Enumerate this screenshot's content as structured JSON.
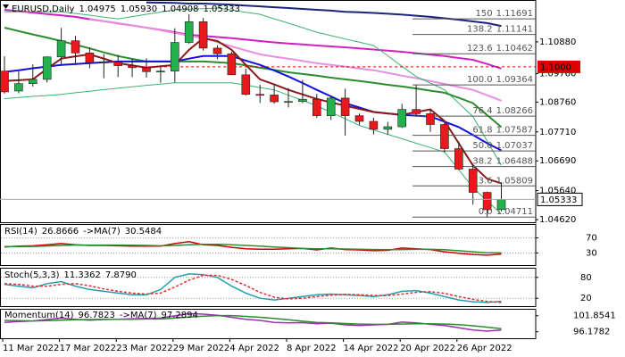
{
  "chart_data": [
    {
      "type": "candlestick",
      "title": "EURUSD,Daily",
      "header_values": [
        1.04975,
        {
          "value": 1.0593,
          "label": "1.05930"
        },
        1.04908,
        1.05333
      ],
      "categories": [
        "11 Mar 2022",
        null,
        null,
        null,
        "17 Mar 2022",
        null,
        null,
        null,
        "23 Mar 2022",
        null,
        null,
        null,
        "29 Mar 2022",
        null,
        null,
        null,
        "4 Apr 2022",
        null,
        null,
        null,
        "8 Apr 2022",
        null,
        null,
        null,
        "14 Apr 2022",
        null,
        null,
        null,
        "20 Apr 2022",
        null,
        null,
        null,
        "26 Apr 2022",
        null,
        null,
        null
      ],
      "open": [
        1.0985,
        1.0915,
        1.0941,
        1.0956,
        1.1035,
        1.1092,
        1.1049,
        1.1015,
        1.1017,
        1.1004,
        1.0997,
        1.0983,
        1.0985,
        1.1086,
        1.1159,
        1.1066,
        1.1046,
        1.0972,
        1.0903,
        1.0901,
        1.0877,
        1.0878,
        1.0886,
        1.0828,
        1.089,
        1.0828,
        1.0808,
        1.078,
        1.0789,
        1.085,
        1.0835,
        1.0797,
        1.0712,
        1.064,
        1.0558,
        1.04975
      ],
      "high": [
        1.1037,
        1.0984,
        1.1009,
        1.1037,
        1.1137,
        1.1109,
        1.1069,
        1.1045,
        1.1042,
        1.1028,
        1.103,
        1.0999,
        1.1136,
        1.1185,
        1.1172,
        1.1076,
        1.1053,
        1.0994,
        1.0937,
        1.0936,
        1.0925,
        1.0954,
        1.0905,
        1.0898,
        1.0923,
        1.0835,
        1.0821,
        1.0806,
        1.087,
        1.0936,
        1.0851,
        1.0805,
        1.0737,
        1.0657,
        1.0561,
        1.0593
      ],
      "low": [
        1.0906,
        1.0907,
        1.0931,
        1.0945,
        1.1005,
        1.1006,
        1.0995,
        1.096,
        1.0964,
        1.0964,
        1.0962,
        1.0944,
        1.0945,
        1.1081,
        1.1057,
        1.1027,
        1.0971,
        1.0899,
        1.0873,
        1.087,
        1.0857,
        1.0872,
        1.082,
        1.0813,
        1.0758,
        1.0796,
        1.0762,
        1.0761,
        1.0785,
        1.0826,
        1.0771,
        1.0699,
        1.0637,
        1.0515,
        1.0471,
        1.04908
      ],
      "close": [
        1.0912,
        1.0941,
        1.0956,
        1.1035,
        1.1092,
        1.1049,
        1.1015,
        1.1017,
        1.1004,
        1.0997,
        1.0983,
        1.0985,
        1.1086,
        1.1159,
        1.1066,
        1.1046,
        1.0972,
        1.0903,
        1.0901,
        1.0877,
        1.0878,
        1.0886,
        1.0828,
        1.089,
        1.0828,
        1.0808,
        1.078,
        1.0789,
        1.085,
        1.0835,
        1.0797,
        1.0712,
        1.064,
        1.0558,
        1.0497,
        1.05333
      ],
      "up_color": "#22b14c",
      "down_color": "#e8191c",
      "series": [
        {
          "color": "#1a237e",
          "width": 2,
          "values": [
            null,
            null,
            null,
            null,
            null,
            null,
            null,
            null,
            null,
            null,
            1.1227,
            1.1226,
            1.1225,
            1.1223,
            1.1223,
            1.1221,
            1.1219,
            1.1216,
            1.1213,
            1.121,
            1.1207,
            1.1204,
            1.1201,
            1.1198,
            1.1194,
            1.1192,
            1.119,
            1.1187,
            1.1184,
            1.118,
            1.1176,
            1.1171,
            1.1166,
            1.116,
            1.1154,
            1.1144
          ]
        },
        {
          "color": "#d020c0",
          "width": 2,
          "values": [
            1.1201,
            1.1196,
            1.1191,
            1.1186,
            1.1181,
            1.1176,
            1.1168,
            1.1161,
            1.1153,
            1.1146,
            1.1138,
            1.113,
            1.1122,
            1.1113,
            1.1109,
            1.1105,
            1.1101,
            1.1096,
            1.1091,
            1.1086,
            1.1082,
            1.1079,
            1.1075,
            1.1072,
            1.1069,
            1.1065,
            1.1061,
            1.1057,
            1.1053,
            1.1048,
            1.1043,
            1.1038,
            1.1031,
            1.1025,
            1.101,
            1.0994
          ]
        },
        {
          "color": "#e890e0",
          "width": 2,
          "values": [
            null,
            null,
            null,
            null,
            null,
            null,
            1.1169,
            1.1161,
            1.1154,
            1.1146,
            1.1138,
            1.1129,
            1.1119,
            1.111,
            1.1101,
            1.1087,
            1.1072,
            1.1058,
            1.1044,
            1.1036,
            1.1029,
            1.1021,
            1.1013,
            1.1007,
            1.1001,
            1.0994,
            1.0988,
            1.0979,
            1.0969,
            1.096,
            1.095,
            1.094,
            1.0929,
            1.0919,
            1.09,
            1.0881
          ]
        },
        {
          "color": "#3cb371",
          "width": 1,
          "values": [
            1.1194,
            1.1194,
            1.1194,
            1.1194,
            1.1194,
            1.1188,
            1.1182,
            1.1175,
            1.1169,
            1.1177,
            1.1185,
            1.1193,
            1.1201,
            1.1203,
            1.1205,
            1.1207,
            1.12,
            1.1192,
            1.1185,
            1.1169,
            1.1154,
            1.1138,
            1.1122,
            1.111,
            1.1098,
            1.1087,
            1.1075,
            1.1039,
            1.1002,
            1.0966,
            1.0943,
            1.0919,
            1.0872,
            1.0825,
            1.0739,
            1.0653
          ]
        },
        {
          "color": "#3cb371",
          "width": 1,
          "values": [
            1.0888,
            1.0892,
            1.0896,
            1.0899,
            1.0903,
            1.0909,
            1.0914,
            1.092,
            1.0925,
            1.093,
            1.0935,
            1.0939,
            1.0944,
            1.0944,
            1.0944,
            1.0944,
            1.0944,
            1.0936,
            1.0927,
            1.0919,
            1.09,
            1.0882,
            1.0863,
            1.084,
            1.0817,
            1.0794,
            1.0778,
            1.0762,
            1.0747,
            1.0731,
            1.0716,
            1.07,
            1.0638,
            1.0575,
            1.0528,
            1.0481
          ]
        },
        {
          "color": "#2e8b2e",
          "width": 2,
          "values": [
            1.1138,
            1.1126,
            1.1114,
            1.1103,
            1.1091,
            1.1078,
            1.1065,
            1.1051,
            1.1038,
            1.1028,
            1.1019,
            1.1019,
            1.1019,
            1.1019,
            1.1019,
            1.1016,
            1.1013,
            1.1005,
            1.0997,
            1.0989,
            1.0981,
            1.0975,
            1.0969,
            1.0962,
            1.0956,
            1.095,
            1.0944,
            1.0937,
            1.0931,
            1.0924,
            1.0916,
            1.0909,
            1.0891,
            1.0872,
            1.083,
            1.0788
          ]
        },
        {
          "color": "#1010e0",
          "width": 2,
          "values": [
            1.0982,
            1.0988,
            1.0995,
            1.1001,
            1.1007,
            1.101,
            1.1013,
            1.1016,
            1.1019,
            1.1019,
            1.1019,
            1.1019,
            1.1019,
            1.1029,
            1.1038,
            1.1038,
            1.1038,
            1.1022,
            1.1007,
            1.0987,
            1.0966,
            1.0943,
            1.0919,
            1.0896,
            1.0872,
            1.0857,
            1.0841,
            1.0836,
            1.0831,
            1.0828,
            1.0825,
            1.0807,
            1.0788,
            1.076,
            1.0731,
            1.0706
          ]
        },
        {
          "color": "#8b1a1a",
          "width": 2,
          "values": [
            1.095,
            1.0953,
            1.0956,
            1.0993,
            1.1029,
            1.1037,
            1.1044,
            1.1029,
            1.1013,
            1.1005,
            1.0997,
            1.1002,
            1.1007,
            1.106,
            1.1101,
            1.1091,
            1.106,
            1.1007,
            1.0956,
            1.0938,
            1.0919,
            1.0903,
            1.0887,
            1.0875,
            1.0863,
            1.0852,
            1.0841,
            1.0836,
            1.0831,
            1.0841,
            1.085,
            1.0809,
            1.0731,
            1.0653,
            1.0606,
            1.059
          ]
        }
      ],
      "ylim": [
        1.0456,
        1.1226
      ],
      "yticks": [
        {
          "value": 1.1088,
          "label": "1.10880"
        },
        {
          "value": 1.0976,
          "label": "1.09760"
        },
        {
          "value": 1.0876,
          "label": "1.08760"
        },
        {
          "value": 1.0771,
          "label": "1.07710"
        },
        {
          "value": 1.0669,
          "label": "1.06690"
        },
        {
          "value": 1.0564,
          "label": "1.05640"
        },
        {
          "value": 1.0462,
          "label": "1.04620"
        }
      ],
      "fibonacci": {
        "color": "#555555",
        "levels": [
          {
            "level": "150",
            "value": 1.11691
          },
          {
            "level": "138.2",
            "value": 1.11141
          },
          {
            "level": "123.6",
            "value": 1.10462
          },
          {
            "level": "100.0",
            "value": 1.09364
          },
          {
            "level": "76.4",
            "value": 1.08266
          },
          {
            "level": "61.8",
            "value": 1.07587
          },
          {
            "level": "50.0",
            "value": 1.07037
          },
          {
            "level": "38.2",
            "value": 1.06488
          },
          {
            "level": "23.6",
            "value": 1.05809
          },
          {
            "level": "0.0",
            "value": 1.04711
          }
        ]
      },
      "horizontal_line": {
        "value": 1.1,
        "label": "1.1000",
        "color": "#e00000"
      }
    },
    {
      "type": "line",
      "ylim": [
        0,
        100
      ],
      "yticks": [
        70,
        30
      ],
      "level_lines": true,
      "series": [
        {
          "name": "RSI(14)",
          "current": 26.8666,
          "color": "#cc0000",
          "values": [
            46,
            48,
            49,
            52,
            55,
            52,
            50,
            50,
            49,
            48,
            48,
            48,
            55,
            60,
            52,
            50,
            45,
            41,
            40,
            40,
            41,
            42,
            38,
            43,
            39,
            38,
            36,
            37,
            43,
            41,
            39,
            33,
            29,
            26,
            24,
            26.8666
          ]
        },
        {
          "name": "->MA(7)",
          "current": 30.5484,
          "color": "#2e8b2e",
          "values": [
            47,
            47,
            47.5,
            48.5,
            50,
            51,
            51,
            51,
            51,
            50.5,
            50,
            49,
            50,
            52,
            53,
            53,
            52,
            50,
            48,
            46,
            44,
            42,
            41,
            41,
            40.5,
            40,
            39,
            38.5,
            39,
            39.5,
            39.5,
            38.5,
            36,
            33,
            30.5,
            30.5484
          ]
        }
      ]
    },
    {
      "type": "line",
      "ylim": [
        0,
        100
      ],
      "yticks": [
        80,
        20
      ],
      "level_lines": true,
      "series": [
        {
          "name": "Stoch(5,3,3)",
          "current": 11.3362,
          "color": "#20a0b0",
          "values": [
            60,
            55,
            50,
            62,
            68,
            55,
            45,
            40,
            35,
            30,
            30,
            45,
            80,
            90,
            88,
            80,
            55,
            35,
            20,
            15,
            20,
            25,
            30,
            32,
            30,
            28,
            25,
            30,
            40,
            42,
            35,
            25,
            15,
            10,
            8,
            11.3362
          ]
        },
        {
          "current": {
            "value": 7.879,
            "label": "7.8790"
          },
          "color": "#e03030",
          "dashed": true,
          "values": [
            62,
            60,
            55,
            55,
            60,
            62,
            56,
            47,
            40,
            35,
            32,
            35,
            52,
            72,
            86,
            86,
            74,
            57,
            37,
            23,
            18,
            20,
            25,
            29,
            31,
            30,
            28,
            28,
            32,
            37,
            39,
            34,
            25,
            17,
            11,
            7.879
          ]
        }
      ]
    },
    {
      "type": "line",
      "ylim": [
        94.19,
        103.35
      ],
      "yticks": [
        101.8541,
        96.1782
      ],
      "level_lines": false,
      "series": [
        {
          "name": "Momentum(14)",
          "current": 96.7823,
          "color": "#9b30b0",
          "values": [
            99.5,
            99.8,
            100.0,
            100.5,
            101.0,
            100.6,
            100.3,
            100.5,
            100.6,
            100.8,
            100.9,
            101.0,
            101.8,
            102.6,
            102.4,
            102.0,
            101.3,
            100.6,
            100.2,
            99.5,
            99.3,
            99.4,
            99.0,
            99.2,
            98.6,
            98.4,
            98.6,
            98.8,
            99.6,
            99.3,
            98.8,
            98.4,
            97.6,
            96.8,
            96.4,
            96.7823
          ]
        },
        {
          "name": "->MA(7)",
          "current": 97.2894,
          "color": "#2e8b2e",
          "values": [
            100.2,
            100.1,
            100.0,
            100.1,
            100.3,
            100.4,
            100.5,
            100.6,
            100.6,
            100.6,
            100.7,
            100.7,
            101.0,
            101.4,
            101.7,
            101.9,
            101.9,
            101.6,
            101.3,
            100.9,
            100.4,
            99.9,
            99.5,
            99.3,
            99.1,
            98.9,
            98.8,
            98.8,
            98.9,
            99.0,
            99.0,
            98.9,
            98.7,
            98.3,
            97.8,
            97.2894
          ]
        }
      ]
    }
  ]
}
